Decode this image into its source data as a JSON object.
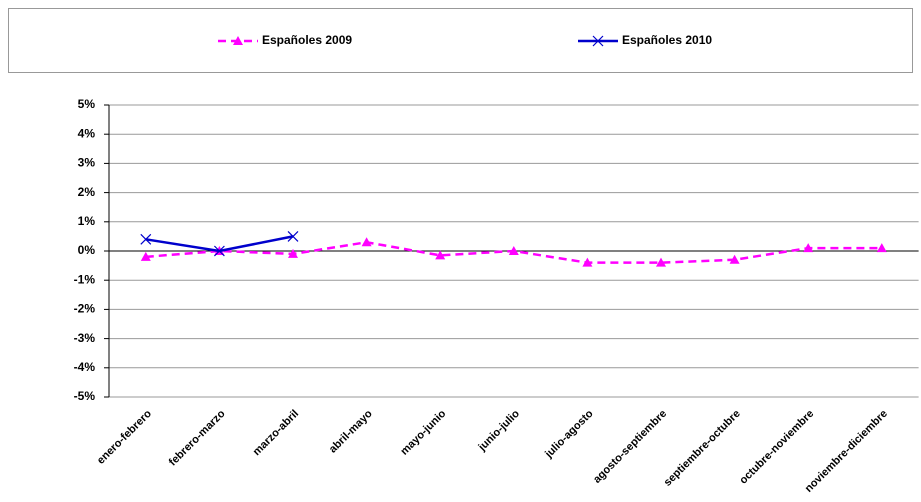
{
  "chart_data": {
    "type": "line",
    "categories": [
      "enero-febrero",
      "febrero-marzo",
      "marzo-abril",
      "abril-mayo",
      "mayo-junio",
      "junio-julio",
      "julio-agosto",
      "agosto-septiembre",
      "septiembre-octubre",
      "octubre-noviembre",
      "noviembre-diciembre"
    ],
    "series": [
      {
        "name": "Españoles 2009",
        "color": "#ff00ff",
        "marker": "triangle",
        "dashed": true,
        "values": [
          -0.2,
          0,
          -0.1,
          0.3,
          -0.15,
          0,
          -0.4,
          -0.4,
          -0.3,
          0.1,
          0.1
        ]
      },
      {
        "name": "Españoles 2010",
        "color": "#0000cc",
        "marker": "x",
        "dashed": false,
        "values": [
          0.4,
          0,
          0.5,
          null,
          null,
          null,
          null,
          null,
          null,
          null,
          null
        ]
      }
    ],
    "ylim": [
      -5,
      5
    ],
    "yticks": [
      {
        "value": -5,
        "label": "-5%"
      },
      {
        "value": -4,
        "label": "-4%"
      },
      {
        "value": -3,
        "label": "-3%"
      },
      {
        "value": -2,
        "label": "-2%"
      },
      {
        "value": -1,
        "label": "-1%"
      },
      {
        "value": 0,
        "label": "0%"
      },
      {
        "value": 1,
        "label": "1%"
      },
      {
        "value": 2,
        "label": "2%"
      },
      {
        "value": 3,
        "label": "3%"
      },
      {
        "value": 4,
        "label": "4%"
      },
      {
        "value": 5,
        "label": "5%"
      }
    ],
    "grid": true,
    "legend": "top"
  }
}
